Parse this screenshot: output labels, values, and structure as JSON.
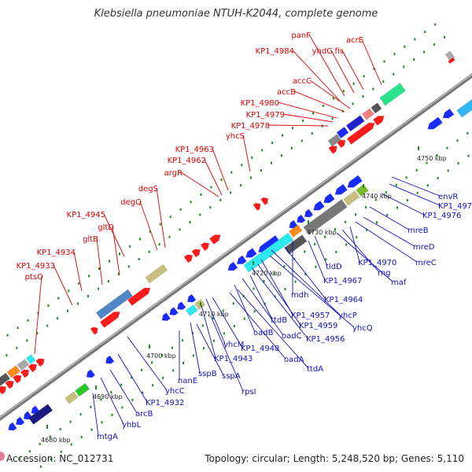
{
  "title": "Klebsiella pneumoniae NTUH-K2044, complete genome",
  "footer": {
    "accession": "Accession: NC_012731",
    "summary": "Topology: circular; Length: 5,248,520 bp; Genes: 5,110"
  },
  "colors": {
    "forward_label": "#dd0000",
    "reverse_label": "#1010c0",
    "backbone": "#888888",
    "tick": "#1a8a1a"
  },
  "ticks": [
    "4680 kbp",
    "4690 kbp",
    "4700 kbp",
    "4710 kbp",
    "4720 kbp",
    "4730 kbp",
    "4740 kbp",
    "4750 kbp"
  ],
  "forward_labels": [
    "panF",
    "KP1_4984",
    "yhdG",
    "fis",
    "acrE",
    "accC",
    "accB",
    "KP1_4980",
    "KP1_4979",
    "KP1_4978",
    "yhcS",
    "KP1_4963",
    "KP1_4962",
    "argR",
    "degS",
    "degQ",
    "KP1_4945",
    "gltD",
    "gltB",
    "KP1_4934",
    "KP1_4933",
    "ptsO"
  ],
  "reverse_labels": [
    "envR",
    "KP1_4977",
    "KP1_4976",
    "mreB",
    "mreD",
    "mreC",
    "KP1_4970",
    "rng",
    "maf",
    "tldD",
    "KP1_4967",
    "mdh",
    "KP1_4964",
    "yhcP",
    "yhcQ",
    "KP1_4957",
    "KP1_4959",
    "KP1_4956",
    "ttdB",
    "oadC",
    "oadB",
    "ttdA",
    "oadA",
    "yhcM",
    "KP1_4948",
    "KP1_4943",
    "sspB",
    "sspA",
    "rpsI",
    "nanE",
    "yhcC",
    "KP1_4932",
    "arcB",
    "yhbL",
    "mtgA"
  ]
}
